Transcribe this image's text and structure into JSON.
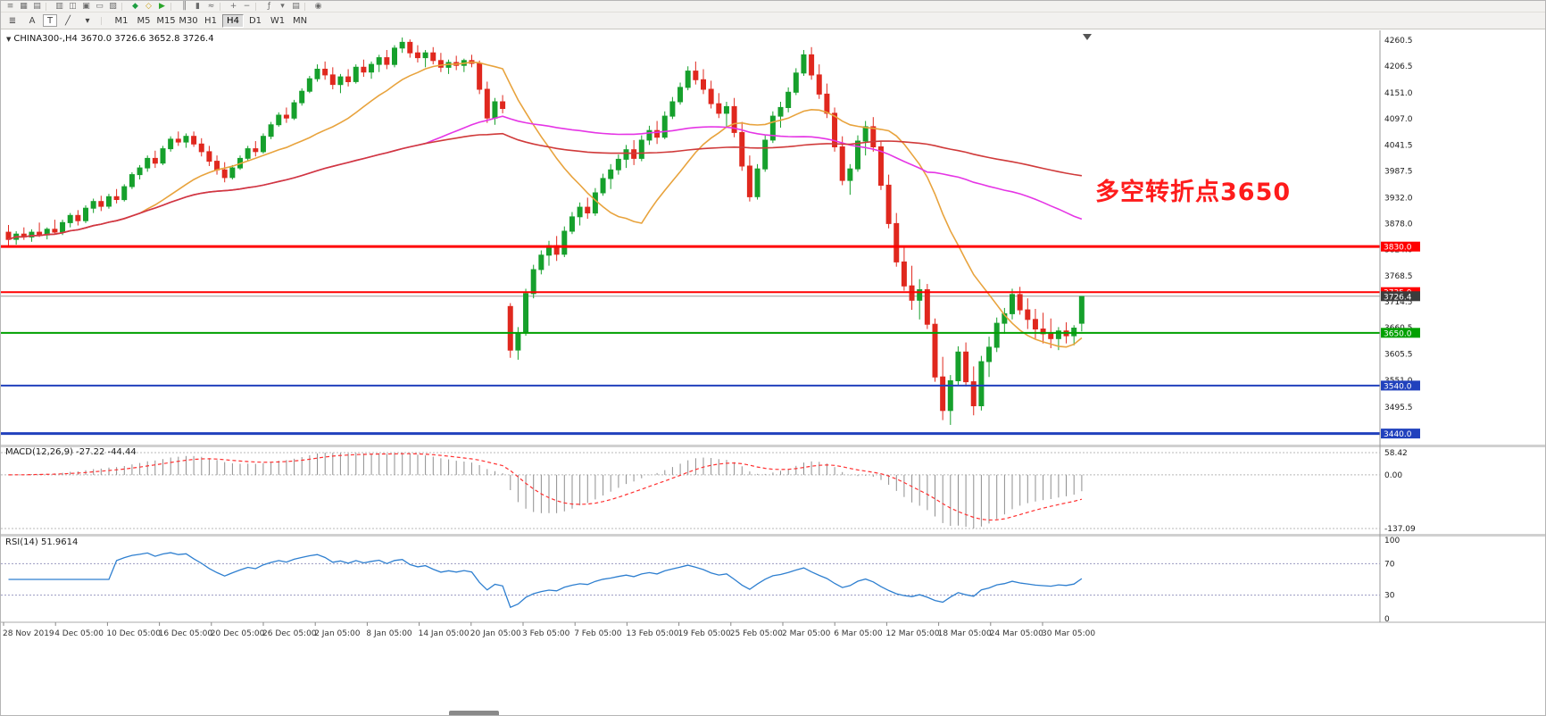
{
  "toolbar_top": {
    "icons": [
      {
        "name": "menu-icon",
        "glyph": "≡"
      },
      {
        "name": "new-chart-icon",
        "glyph": "▦"
      },
      {
        "name": "profiles-icon",
        "glyph": "▤"
      },
      {
        "sep": true
      },
      {
        "name": "market-watch-icon",
        "glyph": "▥"
      },
      {
        "name": "data-window-icon",
        "glyph": "◫"
      },
      {
        "name": "navigator-icon",
        "glyph": "▣"
      },
      {
        "name": "terminal-icon",
        "glyph": "▭"
      },
      {
        "name": "strategy-tester-icon",
        "glyph": "▧"
      },
      {
        "sep": true
      },
      {
        "name": "new-order-icon",
        "glyph": "◆",
        "color": "#1e9e40"
      },
      {
        "name": "metaeditor-icon",
        "glyph": "◇",
        "color": "#c8a018"
      },
      {
        "name": "autotrading-icon",
        "glyph": "▶",
        "color": "#2aa52a"
      },
      {
        "sep": true
      },
      {
        "name": "bar-chart-icon",
        "glyph": "║"
      },
      {
        "name": "candlestick-chart-icon",
        "glyph": "▮"
      },
      {
        "name": "line-chart-icon",
        "glyph": "≈"
      },
      {
        "sep": true
      },
      {
        "name": "zoom-in-icon",
        "glyph": "+"
      },
      {
        "name": "zoom-out-icon",
        "glyph": "−"
      },
      {
        "sep": true
      },
      {
        "name": "indicators-icon",
        "glyph": "ƒ"
      },
      {
        "name": "periods-icon",
        "glyph": "▾"
      },
      {
        "name": "templates-icon",
        "glyph": "▤"
      },
      {
        "sep": true
      },
      {
        "name": "help-icon",
        "glyph": "◉"
      }
    ]
  },
  "toolbar_second": {
    "tools": [
      {
        "name": "objects-list-icon",
        "glyph": "≣"
      },
      {
        "name": "annotation-tool-button",
        "glyph": "A"
      },
      {
        "name": "text-tool-button",
        "glyph": "T",
        "boxed": true
      },
      {
        "name": "draw-tool-icon",
        "glyph": "╱"
      },
      {
        "name": "draw-tool-dropdown-icon",
        "glyph": "▾"
      }
    ],
    "timeframes": [
      "M1",
      "M5",
      "M15",
      "M30",
      "H1",
      "H4",
      "D1",
      "W1",
      "MN"
    ],
    "active_timeframe": "H4"
  },
  "chart": {
    "caret": "▼",
    "title": "CHINA300-,H4 3670.0 3726.6 3652.8 3726.4",
    "symbol": "CHINA300-",
    "timeframe": "H4",
    "ohlc": {
      "open": "3670.0",
      "high": "3726.6",
      "low": "3652.8",
      "close": "3726.4"
    },
    "annotation": {
      "text": "多空转折点3650",
      "color": "#fe1c1c"
    },
    "up_color": "#16a02c",
    "down_color": "#e0281e",
    "price_axis": [
      "4260.5",
      "4206.5",
      "4151.0",
      "4097.0",
      "4041.5",
      "3987.5",
      "3932.0",
      "3878.0",
      "3824.0",
      "3768.5",
      "3714.5",
      "3660.5",
      "3605.5",
      "3551.0",
      "3495.5",
      "3441.5"
    ],
    "levels": [
      {
        "price": 3830.0,
        "label": "3830.0",
        "color": "#ff0000",
        "width": 3
      },
      {
        "price": 3735.0,
        "label": "3735.0",
        "color": "#ff0000",
        "width": 2
      },
      {
        "price": 3650.0,
        "label": "3650.0",
        "color": "#00a000",
        "width": 2
      },
      {
        "price": 3540.0,
        "label": "3540.0",
        "color": "#2141bd",
        "width": 2
      },
      {
        "price": 3440.0,
        "label": "3440.0",
        "color": "#2141bd",
        "width": 3
      }
    ],
    "bid": {
      "price": 3726.4,
      "label": "3726.4",
      "line_color": "#9a9a9a",
      "badge_color": "#3c3c3c"
    },
    "ma": [
      {
        "name": "ma-fast-line",
        "period": 18,
        "color": "#e8a33d"
      },
      {
        "name": "ma-mid-line",
        "period": 55,
        "color": "#e535e5"
      },
      {
        "name": "ma-slow-line",
        "period": 110,
        "color": "#d03a3a"
      }
    ],
    "candles": [
      [
        3860,
        3875,
        3830,
        3845
      ],
      [
        3845,
        3862,
        3834,
        3856
      ],
      [
        3856,
        3870,
        3844,
        3850
      ],
      [
        3850,
        3866,
        3840,
        3860
      ],
      [
        3860,
        3880,
        3850,
        3854
      ],
      [
        3854,
        3870,
        3845,
        3866
      ],
      [
        3866,
        3886,
        3856,
        3860
      ],
      [
        3860,
        3886,
        3854,
        3880
      ],
      [
        3880,
        3900,
        3870,
        3895
      ],
      [
        3895,
        3906,
        3874,
        3884
      ],
      [
        3884,
        3916,
        3879,
        3910
      ],
      [
        3910,
        3930,
        3900,
        3924
      ],
      [
        3924,
        3936,
        3904,
        3914
      ],
      [
        3914,
        3940,
        3909,
        3934
      ],
      [
        3934,
        3950,
        3920,
        3928
      ],
      [
        3928,
        3960,
        3924,
        3955
      ],
      [
        3955,
        3985,
        3950,
        3980
      ],
      [
        3980,
        4000,
        3970,
        3994
      ],
      [
        3994,
        4020,
        3986,
        4014
      ],
      [
        4014,
        4030,
        3994,
        4004
      ],
      [
        4004,
        4040,
        4000,
        4034
      ],
      [
        4034,
        4060,
        4028,
        4054
      ],
      [
        4054,
        4070,
        4040,
        4048
      ],
      [
        4048,
        4066,
        4036,
        4060
      ],
      [
        4060,
        4070,
        4038,
        4044
      ],
      [
        4044,
        4056,
        4018,
        4028
      ],
      [
        4028,
        4040,
        3998,
        4008
      ],
      [
        4008,
        4020,
        3980,
        3990
      ],
      [
        3990,
        4006,
        3964,
        3974
      ],
      [
        3974,
        4000,
        3970,
        3994
      ],
      [
        3994,
        4020,
        3990,
        4014
      ],
      [
        4014,
        4040,
        4008,
        4034
      ],
      [
        4034,
        4050,
        4018,
        4028
      ],
      [
        4028,
        4066,
        4024,
        4060
      ],
      [
        4060,
        4090,
        4054,
        4084
      ],
      [
        4084,
        4110,
        4080,
        4104
      ],
      [
        4104,
        4120,
        4088,
        4098
      ],
      [
        4098,
        4136,
        4094,
        4130
      ],
      [
        4130,
        4160,
        4124,
        4154
      ],
      [
        4154,
        4186,
        4150,
        4180
      ],
      [
        4180,
        4210,
        4174,
        4200
      ],
      [
        4200,
        4216,
        4178,
        4188
      ],
      [
        4188,
        4204,
        4158,
        4168
      ],
      [
        4168,
        4190,
        4150,
        4184
      ],
      [
        4184,
        4200,
        4164,
        4174
      ],
      [
        4174,
        4210,
        4170,
        4204
      ],
      [
        4204,
        4220,
        4184,
        4194
      ],
      [
        4194,
        4216,
        4180,
        4210
      ],
      [
        4210,
        4230,
        4194,
        4224
      ],
      [
        4224,
        4240,
        4200,
        4210
      ],
      [
        4210,
        4250,
        4204,
        4244
      ],
      [
        4244,
        4266,
        4234,
        4256
      ],
      [
        4256,
        4262,
        4224,
        4234
      ],
      [
        4234,
        4250,
        4214,
        4224
      ],
      [
        4224,
        4240,
        4204,
        4234
      ],
      [
        4234,
        4246,
        4210,
        4218
      ],
      [
        4218,
        4234,
        4194,
        4204
      ],
      [
        4204,
        4220,
        4190,
        4214
      ],
      [
        4214,
        4228,
        4198,
        4208
      ],
      [
        4208,
        4222,
        4194,
        4218
      ],
      [
        4218,
        4230,
        4204,
        4212
      ],
      [
        4212,
        4218,
        4148,
        4158
      ],
      [
        4158,
        4174,
        4088,
        4098
      ],
      [
        4098,
        4140,
        4084,
        4132
      ],
      [
        4132,
        4146,
        4108,
        4118
      ],
      [
        3705,
        3712,
        3598,
        3614
      ],
      [
        3614,
        3662,
        3594,
        3650
      ],
      [
        3650,
        3742,
        3644,
        3732
      ],
      [
        3732,
        3792,
        3722,
        3782
      ],
      [
        3782,
        3822,
        3772,
        3812
      ],
      [
        3812,
        3842,
        3790,
        3832
      ],
      [
        3832,
        3852,
        3800,
        3814
      ],
      [
        3814,
        3872,
        3808,
        3862
      ],
      [
        3862,
        3902,
        3856,
        3892
      ],
      [
        3892,
        3922,
        3874,
        3912
      ],
      [
        3912,
        3932,
        3888,
        3900
      ],
      [
        3900,
        3952,
        3894,
        3942
      ],
      [
        3942,
        3982,
        3936,
        3972
      ],
      [
        3972,
        4002,
        3950,
        3990
      ],
      [
        3990,
        4022,
        3980,
        4012
      ],
      [
        4012,
        4042,
        3994,
        4032
      ],
      [
        4032,
        4052,
        4000,
        4014
      ],
      [
        4014,
        4062,
        4008,
        4052
      ],
      [
        4052,
        4082,
        4042,
        4072
      ],
      [
        4072,
        4092,
        4044,
        4058
      ],
      [
        4058,
        4112,
        4054,
        4102
      ],
      [
        4102,
        4142,
        4096,
        4132
      ],
      [
        4132,
        4172,
        4126,
        4162
      ],
      [
        4162,
        4206,
        4156,
        4196
      ],
      [
        4196,
        4216,
        4168,
        4178
      ],
      [
        4178,
        4200,
        4148,
        4158
      ],
      [
        4158,
        4176,
        4118,
        4128
      ],
      [
        4128,
        4150,
        4098,
        4108
      ],
      [
        4108,
        4132,
        4078,
        4122
      ],
      [
        4122,
        4140,
        4058,
        4068
      ],
      [
        4068,
        4090,
        3988,
        3998
      ],
      [
        3998,
        4020,
        3924,
        3934
      ],
      [
        3934,
        4002,
        3928,
        3992
      ],
      [
        3992,
        4062,
        3986,
        4052
      ],
      [
        4052,
        4112,
        4046,
        4102
      ],
      [
        4102,
        4132,
        4078,
        4120
      ],
      [
        4120,
        4162,
        4110,
        4152
      ],
      [
        4152,
        4202,
        4146,
        4192
      ],
      [
        4192,
        4240,
        4186,
        4230
      ],
      [
        4230,
        4246,
        4178,
        4188
      ],
      [
        4188,
        4210,
        4138,
        4148
      ],
      [
        4148,
        4170,
        4098,
        4108
      ],
      [
        4108,
        4120,
        4028,
        4038
      ],
      [
        4038,
        4060,
        3958,
        3968
      ],
      [
        3968,
        4002,
        3938,
        3992
      ],
      [
        3992,
        4062,
        3986,
        4050
      ],
      [
        4050,
        4092,
        4020,
        4080
      ],
      [
        4080,
        4100,
        4028,
        4038
      ],
      [
        4038,
        4050,
        3948,
        3958
      ],
      [
        3958,
        3980,
        3868,
        3878
      ],
      [
        3878,
        3900,
        3788,
        3798
      ],
      [
        3798,
        3830,
        3738,
        3748
      ],
      [
        3748,
        3790,
        3698,
        3718
      ],
      [
        3718,
        3762,
        3678,
        3740
      ],
      [
        3740,
        3752,
        3658,
        3668
      ],
      [
        3668,
        3680,
        3548,
        3558
      ],
      [
        3558,
        3600,
        3468,
        3488
      ],
      [
        3488,
        3562,
        3458,
        3550
      ],
      [
        3550,
        3622,
        3540,
        3610
      ],
      [
        3610,
        3630,
        3538,
        3548
      ],
      [
        3548,
        3580,
        3478,
        3498
      ],
      [
        3498,
        3602,
        3488,
        3590
      ],
      [
        3590,
        3642,
        3558,
        3620
      ],
      [
        3620,
        3682,
        3610,
        3670
      ],
      [
        3670,
        3702,
        3648,
        3690
      ],
      [
        3690,
        3742,
        3678,
        3730
      ],
      [
        3730,
        3746,
        3688,
        3698
      ],
      [
        3698,
        3722,
        3658,
        3678
      ],
      [
        3678,
        3700,
        3638,
        3658
      ],
      [
        3658,
        3692,
        3628,
        3648
      ],
      [
        3648,
        3680,
        3618,
        3638
      ],
      [
        3638,
        3662,
        3614,
        3654
      ],
      [
        3654,
        3672,
        3628,
        3644
      ],
      [
        3644,
        3666,
        3624,
        3660
      ],
      [
        3670,
        3727,
        3653,
        3726
      ]
    ]
  },
  "macd": {
    "label": "MACD(12,26,9) -27.22 -44.44",
    "params": [
      12,
      26,
      9
    ],
    "axis": [
      "58.42",
      "0.00",
      "-137.09"
    ],
    "hist_color": "#8f8f8f",
    "signal_color": "#ff3030"
  },
  "rsi": {
    "label": "RSI(14) 51.9614",
    "period": 14,
    "axis": [
      "100",
      "70",
      "30",
      "0"
    ],
    "levels": [
      70,
      30
    ],
    "color": "#2e7fd0"
  },
  "time_axis": {
    "labels": [
      "28 Nov 2019",
      "4 Dec 05:00",
      "10 Dec 05:00",
      "16 Dec 05:00",
      "20 Dec 05:00",
      "26 Dec 05:00",
      "2 Jan 05:00",
      "8 Jan 05:00",
      "14 Jan 05:00",
      "20 Jan 05:00",
      "3 Feb 05:00",
      "7 Feb 05:00",
      "13 Feb 05:00",
      "19 Feb 05:00",
      "25 Feb 05:00",
      "2 Mar 05:00",
      "6 Mar 05:00",
      "12 Mar 05:00",
      "18 Mar 05:00",
      "24 Mar 05:00",
      "30 Mar 05:00"
    ]
  }
}
